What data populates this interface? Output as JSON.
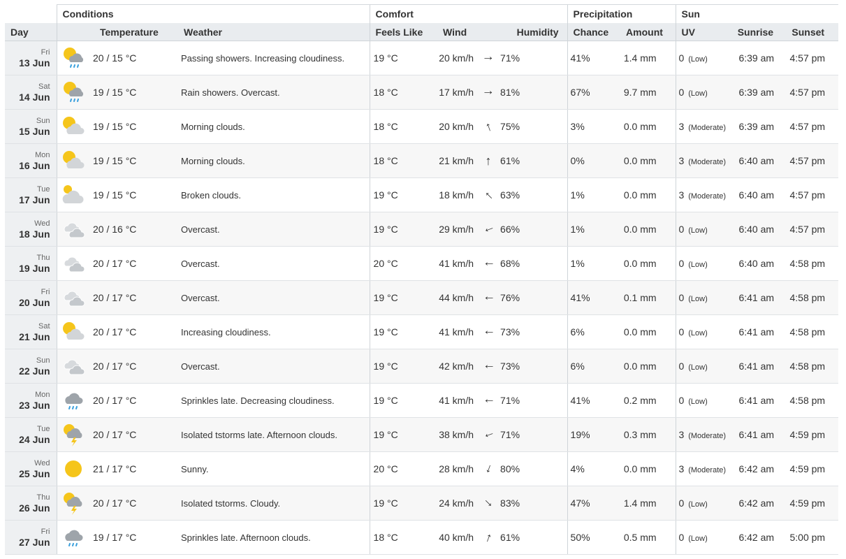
{
  "groups": {
    "conditions": "Conditions",
    "comfort": "Comfort",
    "precipitation": "Precipitation",
    "sun": "Sun"
  },
  "columns": {
    "day": "Day",
    "temperature": "Temperature",
    "weather": "Weather",
    "feels_like": "Feels Like",
    "wind": "Wind",
    "humidity": "Humidity",
    "chance": "Chance",
    "amount": "Amount",
    "uv": "UV",
    "sunrise": "Sunrise",
    "sunset": "Sunset"
  },
  "rows": [
    {
      "dow": "Fri",
      "date": "13 Jun",
      "icon": "sun-cloud-rain",
      "temp": "20 / 15 °C",
      "weather": "Passing showers. Increasing cloudiness.",
      "feels": "19 °C",
      "wind": "20 km/h",
      "wind_rot": 90,
      "humidity": "71%",
      "chance": "41%",
      "amount": "1.4 mm",
      "uv": "0",
      "uv_cat": "(Low)",
      "sunrise": "6:39 am",
      "sunset": "4:57 pm"
    },
    {
      "dow": "Sat",
      "date": "14 Jun",
      "icon": "sun-cloud-rain",
      "temp": "19 / 15 °C",
      "weather": "Rain showers. Overcast.",
      "feels": "18 °C",
      "wind": "17 km/h",
      "wind_rot": 90,
      "humidity": "81%",
      "chance": "67%",
      "amount": "9.7 mm",
      "uv": "0",
      "uv_cat": "(Low)",
      "sunrise": "6:39 am",
      "sunset": "4:57 pm"
    },
    {
      "dow": "Sun",
      "date": "15 Jun",
      "icon": "sun-cloud",
      "temp": "19 / 15 °C",
      "weather": "Morning clouds.",
      "feels": "18 °C",
      "wind": "20 km/h",
      "wind_rot": -20,
      "humidity": "75%",
      "chance": "3%",
      "amount": "0.0 mm",
      "uv": "3",
      "uv_cat": "(Moderate)",
      "sunrise": "6:39 am",
      "sunset": "4:57 pm"
    },
    {
      "dow": "Mon",
      "date": "16 Jun",
      "icon": "sun-cloud",
      "temp": "19 / 15 °C",
      "weather": "Morning clouds.",
      "feels": "18 °C",
      "wind": "21 km/h",
      "wind_rot": 0,
      "humidity": "61%",
      "chance": "0%",
      "amount": "0.0 mm",
      "uv": "3",
      "uv_cat": "(Moderate)",
      "sunrise": "6:40 am",
      "sunset": "4:57 pm"
    },
    {
      "dow": "Tue",
      "date": "17 Jun",
      "icon": "small-sun-big-cloud",
      "temp": "19 / 15 °C",
      "weather": "Broken clouds.",
      "feels": "19 °C",
      "wind": "18 km/h",
      "wind_rot": -45,
      "humidity": "63%",
      "chance": "1%",
      "amount": "0.0 mm",
      "uv": "3",
      "uv_cat": "(Moderate)",
      "sunrise": "6:40 am",
      "sunset": "4:57 pm"
    },
    {
      "dow": "Wed",
      "date": "18 Jun",
      "icon": "two-clouds",
      "temp": "20 / 16 °C",
      "weather": "Overcast.",
      "feels": "19 °C",
      "wind": "29 km/h",
      "wind_rot": -110,
      "humidity": "66%",
      "chance": "1%",
      "amount": "0.0 mm",
      "uv": "0",
      "uv_cat": "(Low)",
      "sunrise": "6:40 am",
      "sunset": "4:57 pm"
    },
    {
      "dow": "Thu",
      "date": "19 Jun",
      "icon": "two-clouds",
      "temp": "20 / 17 °C",
      "weather": "Overcast.",
      "feels": "20 °C",
      "wind": "41 km/h",
      "wind_rot": -90,
      "humidity": "68%",
      "chance": "1%",
      "amount": "0.0 mm",
      "uv": "0",
      "uv_cat": "(Low)",
      "sunrise": "6:40 am",
      "sunset": "4:58 pm"
    },
    {
      "dow": "Fri",
      "date": "20 Jun",
      "icon": "two-clouds",
      "temp": "20 / 17 °C",
      "weather": "Overcast.",
      "feels": "19 °C",
      "wind": "44 km/h",
      "wind_rot": -90,
      "humidity": "76%",
      "chance": "41%",
      "amount": "0.1 mm",
      "uv": "0",
      "uv_cat": "(Low)",
      "sunrise": "6:41 am",
      "sunset": "4:58 pm"
    },
    {
      "dow": "Sat",
      "date": "21 Jun",
      "icon": "sun-cloud",
      "temp": "20 / 17 °C",
      "weather": "Increasing cloudiness.",
      "feels": "19 °C",
      "wind": "41 km/h",
      "wind_rot": -90,
      "humidity": "73%",
      "chance": "6%",
      "amount": "0.0 mm",
      "uv": "0",
      "uv_cat": "(Low)",
      "sunrise": "6:41 am",
      "sunset": "4:58 pm"
    },
    {
      "dow": "Sun",
      "date": "22 Jun",
      "icon": "two-clouds",
      "temp": "20 / 17 °C",
      "weather": "Overcast.",
      "feels": "19 °C",
      "wind": "42 km/h",
      "wind_rot": -90,
      "humidity": "73%",
      "chance": "6%",
      "amount": "0.0 mm",
      "uv": "0",
      "uv_cat": "(Low)",
      "sunrise": "6:41 am",
      "sunset": "4:58 pm"
    },
    {
      "dow": "Mon",
      "date": "23 Jun",
      "icon": "cloud-rain",
      "temp": "20 / 17 °C",
      "weather": "Sprinkles late. Decreasing cloudiness.",
      "feels": "19 °C",
      "wind": "41 km/h",
      "wind_rot": -90,
      "humidity": "71%",
      "chance": "41%",
      "amount": "0.2 mm",
      "uv": "0",
      "uv_cat": "(Low)",
      "sunrise": "6:41 am",
      "sunset": "4:58 pm"
    },
    {
      "dow": "Tue",
      "date": "24 Jun",
      "icon": "sun-cloud-storm",
      "temp": "20 / 17 °C",
      "weather": "Isolated tstorms late. Afternoon clouds.",
      "feels": "19 °C",
      "wind": "38 km/h",
      "wind_rot": -110,
      "humidity": "71%",
      "chance": "19%",
      "amount": "0.3 mm",
      "uv": "3",
      "uv_cat": "(Moderate)",
      "sunrise": "6:41 am",
      "sunset": "4:59 pm"
    },
    {
      "dow": "Wed",
      "date": "25 Jun",
      "icon": "sun",
      "temp": "21 / 17 °C",
      "weather": "Sunny.",
      "feels": "20 °C",
      "wind": "28 km/h",
      "wind_rot": -160,
      "humidity": "80%",
      "chance": "4%",
      "amount": "0.0 mm",
      "uv": "3",
      "uv_cat": "(Moderate)",
      "sunrise": "6:42 am",
      "sunset": "4:59 pm"
    },
    {
      "dow": "Thu",
      "date": "26 Jun",
      "icon": "sun-cloud-storm",
      "temp": "20 / 17 °C",
      "weather": "Isolated tstorms. Cloudy.",
      "feels": "19 °C",
      "wind": "24 km/h",
      "wind_rot": 135,
      "humidity": "83%",
      "chance": "47%",
      "amount": "1.4 mm",
      "uv": "0",
      "uv_cat": "(Low)",
      "sunrise": "6:42 am",
      "sunset": "4:59 pm"
    },
    {
      "dow": "Fri",
      "date": "27 Jun",
      "icon": "cloud-rain",
      "temp": "19 / 17 °C",
      "weather": "Sprinkles late. Afternoon clouds.",
      "feels": "18 °C",
      "wind": "40 km/h",
      "wind_rot": 20,
      "humidity": "61%",
      "chance": "50%",
      "amount": "0.5 mm",
      "uv": "0",
      "uv_cat": "(Low)",
      "sunrise": "6:42 am",
      "sunset": "5:00 pm"
    }
  ]
}
